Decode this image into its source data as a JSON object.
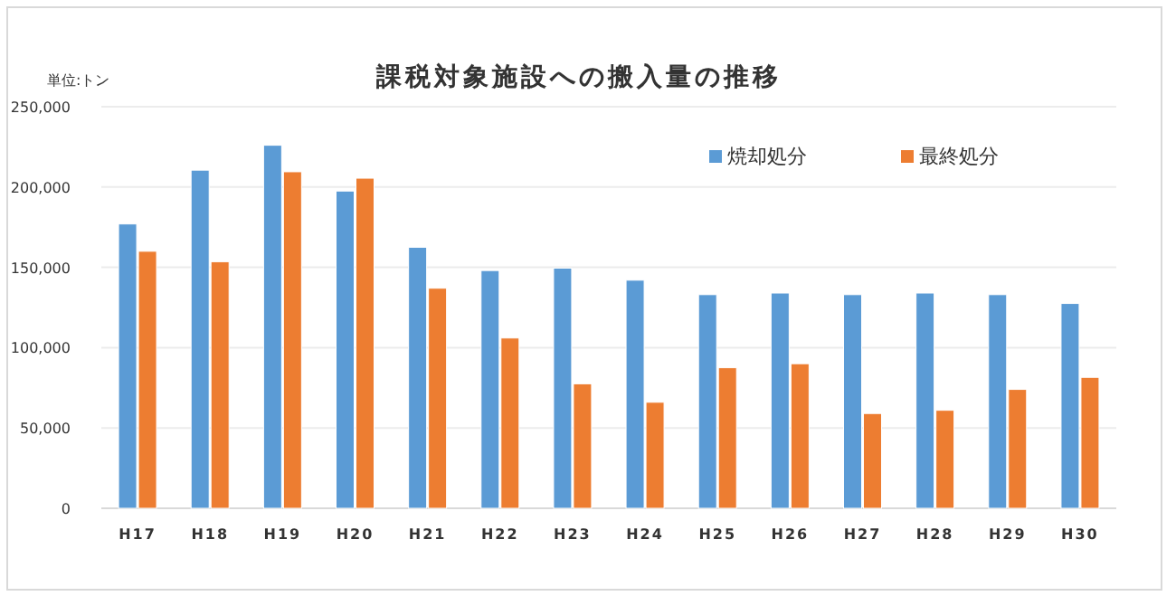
{
  "chart_data": {
    "type": "bar",
    "title": "課税対象施設への搬入量の推移",
    "annotations": [
      "単位:トン"
    ],
    "categories": [
      "H17",
      "H18",
      "H19",
      "H20",
      "H21",
      "H22",
      "H23",
      "H24",
      "H25",
      "H26",
      "H27",
      "H28",
      "H29",
      "H30"
    ],
    "series": [
      {
        "name": "焼却処分",
        "color": "#5b9bd5",
        "values": [
          177000,
          210500,
          226000,
          197500,
          162500,
          148000,
          149500,
          142000,
          133000,
          134000,
          133000,
          134000,
          133000,
          127500
        ]
      },
      {
        "name": "最終処分",
        "color": "#ed7d31",
        "values": [
          160000,
          153500,
          209500,
          205500,
          137000,
          106000,
          77500,
          66000,
          87500,
          90000,
          59000,
          61000,
          74000,
          81500
        ]
      }
    ],
    "ylim": [
      0,
      250000
    ],
    "yticks": [
      {
        "value": 0,
        "label": "0"
      },
      {
        "value": 50000,
        "label": "50,000"
      },
      {
        "value": 100000,
        "label": "100,000"
      },
      {
        "value": 150000,
        "label": "150,000"
      },
      {
        "value": 200000,
        "label": "200,000"
      },
      {
        "value": 250000,
        "label": "250,000"
      }
    ],
    "grid": "y",
    "legend": "top right"
  }
}
